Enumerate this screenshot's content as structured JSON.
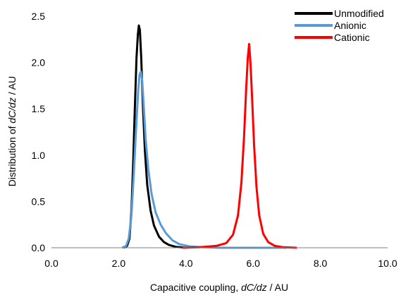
{
  "chart_data": {
    "type": "line",
    "title": "",
    "xlabel": {
      "prefix": "Capacitive coupling, ",
      "italic": "dC/dz",
      "suffix": " / AU"
    },
    "ylabel": {
      "prefix": "Distribution of ",
      "italic": "dC/dz",
      "suffix": " / AU"
    },
    "xlim": [
      0,
      10
    ],
    "ylim": [
      0,
      2.5
    ],
    "x_ticks": [
      0,
      2,
      4,
      6,
      8,
      10
    ],
    "x_tick_labels": [
      "0.0",
      "2.0",
      "4.0",
      "6.0",
      "8.0",
      "10.0"
    ],
    "y_ticks": [
      0,
      0.5,
      1,
      1.5,
      2,
      2.5
    ],
    "y_tick_labels": [
      "0.0",
      "0.5",
      "1.0",
      "1.5",
      "2.0",
      "2.5"
    ],
    "grid": false,
    "legend_position": "top-right",
    "series": [
      {
        "name": "Unmodified",
        "color": "#000000",
        "points": [
          [
            2.15,
            0.0
          ],
          [
            2.25,
            0.02
          ],
          [
            2.32,
            0.1
          ],
          [
            2.38,
            0.4
          ],
          [
            2.43,
            0.9
          ],
          [
            2.48,
            1.5
          ],
          [
            2.53,
            2.05
          ],
          [
            2.57,
            2.3
          ],
          [
            2.6,
            2.4
          ],
          [
            2.63,
            2.35
          ],
          [
            2.67,
            2.05
          ],
          [
            2.72,
            1.55
          ],
          [
            2.78,
            1.05
          ],
          [
            2.85,
            0.68
          ],
          [
            2.95,
            0.4
          ],
          [
            3.05,
            0.24
          ],
          [
            3.2,
            0.12
          ],
          [
            3.35,
            0.06
          ],
          [
            3.5,
            0.03
          ],
          [
            3.7,
            0.01
          ],
          [
            4.0,
            0.0
          ]
        ]
      },
      {
        "name": "Anionic",
        "color": "#5b9bd5",
        "points": [
          [
            2.1,
            0.0
          ],
          [
            2.22,
            0.02
          ],
          [
            2.3,
            0.1
          ],
          [
            2.38,
            0.35
          ],
          [
            2.45,
            0.8
          ],
          [
            2.52,
            1.3
          ],
          [
            2.58,
            1.7
          ],
          [
            2.62,
            1.87
          ],
          [
            2.66,
            1.9
          ],
          [
            2.7,
            1.8
          ],
          [
            2.75,
            1.5
          ],
          [
            2.8,
            1.18
          ],
          [
            2.88,
            0.85
          ],
          [
            2.98,
            0.58
          ],
          [
            3.1,
            0.38
          ],
          [
            3.25,
            0.25
          ],
          [
            3.4,
            0.16
          ],
          [
            3.6,
            0.08
          ],
          [
            3.8,
            0.04
          ],
          [
            4.1,
            0.015
          ],
          [
            4.5,
            0.005
          ],
          [
            5.0,
            0.0
          ],
          [
            6.0,
            0.0
          ],
          [
            7.0,
            0.0
          ]
        ]
      },
      {
        "name": "Cationic",
        "color": "#ff0000",
        "points": [
          [
            3.9,
            0.0
          ],
          [
            4.4,
            0.005
          ],
          [
            4.9,
            0.02
          ],
          [
            5.2,
            0.05
          ],
          [
            5.4,
            0.14
          ],
          [
            5.55,
            0.35
          ],
          [
            5.65,
            0.7
          ],
          [
            5.73,
            1.2
          ],
          [
            5.79,
            1.7
          ],
          [
            5.84,
            2.05
          ],
          [
            5.88,
            2.2
          ],
          [
            5.92,
            2.0
          ],
          [
            5.97,
            1.6
          ],
          [
            6.03,
            1.1
          ],
          [
            6.1,
            0.65
          ],
          [
            6.18,
            0.35
          ],
          [
            6.3,
            0.15
          ],
          [
            6.45,
            0.06
          ],
          [
            6.65,
            0.02
          ],
          [
            6.9,
            0.005
          ],
          [
            7.3,
            0.0
          ]
        ]
      }
    ]
  }
}
